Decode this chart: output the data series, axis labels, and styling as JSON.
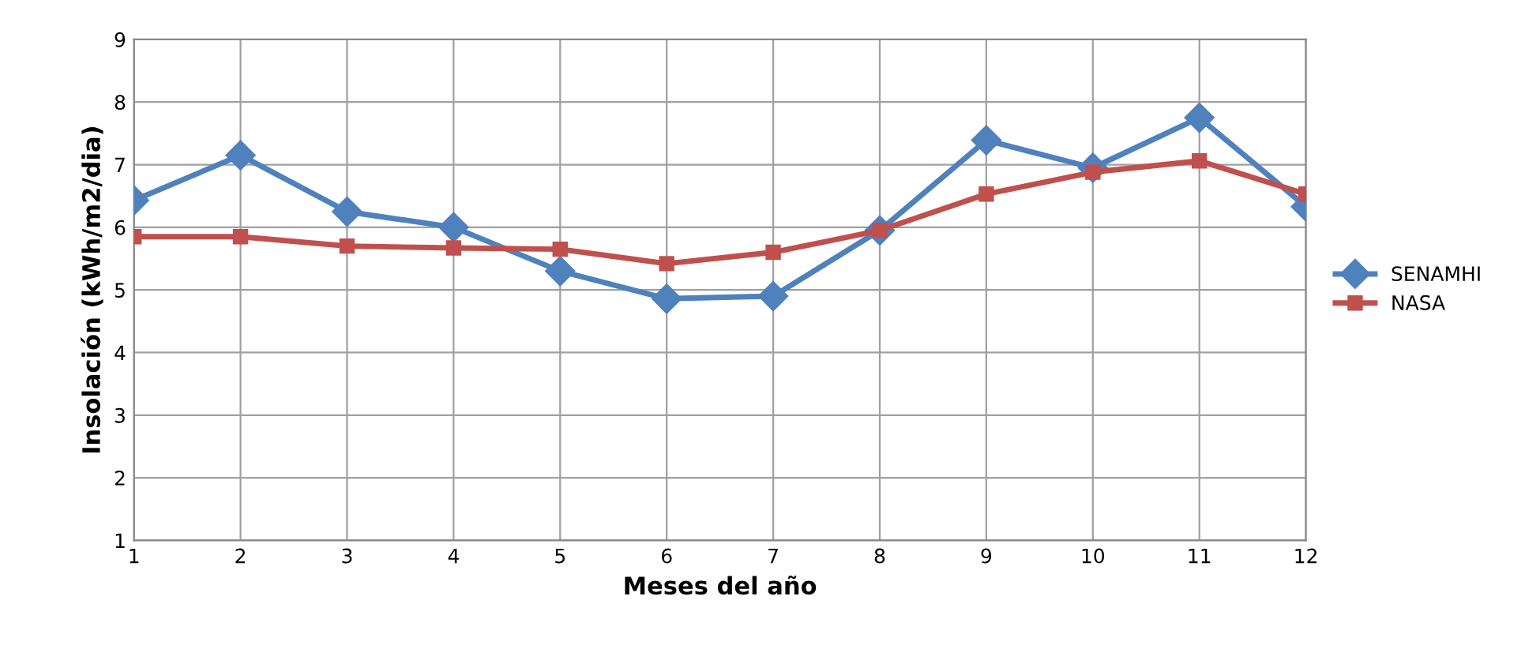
{
  "chart_data": {
    "type": "line",
    "xlabel": "Meses del año",
    "ylabel": "Insolación (kWh/m2/dia)",
    "x": [
      1,
      2,
      3,
      4,
      5,
      6,
      7,
      8,
      9,
      10,
      11,
      12
    ],
    "series": [
      {
        "name": "SENAMHI",
        "color": "#4f81bd",
        "marker": "diamond",
        "values": [
          6.43,
          7.15,
          6.25,
          6.0,
          5.3,
          4.86,
          4.9,
          5.95,
          7.39,
          6.95,
          7.75,
          6.33
        ]
      },
      {
        "name": "NASA",
        "color": "#c0504d",
        "marker": "square",
        "values": [
          5.85,
          5.85,
          5.7,
          5.67,
          5.65,
          5.42,
          5.6,
          5.95,
          6.53,
          6.88,
          7.06,
          6.53
        ]
      }
    ],
    "xlim": [
      1,
      12
    ],
    "xticks": [
      1,
      2,
      3,
      4,
      5,
      6,
      7,
      8,
      9,
      10,
      11,
      12
    ],
    "ylim": [
      1,
      9
    ],
    "yticks": [
      1,
      2,
      3,
      4,
      5,
      6,
      7,
      8,
      9
    ],
    "grid": true,
    "legend": "right",
    "line_style": "solid"
  }
}
